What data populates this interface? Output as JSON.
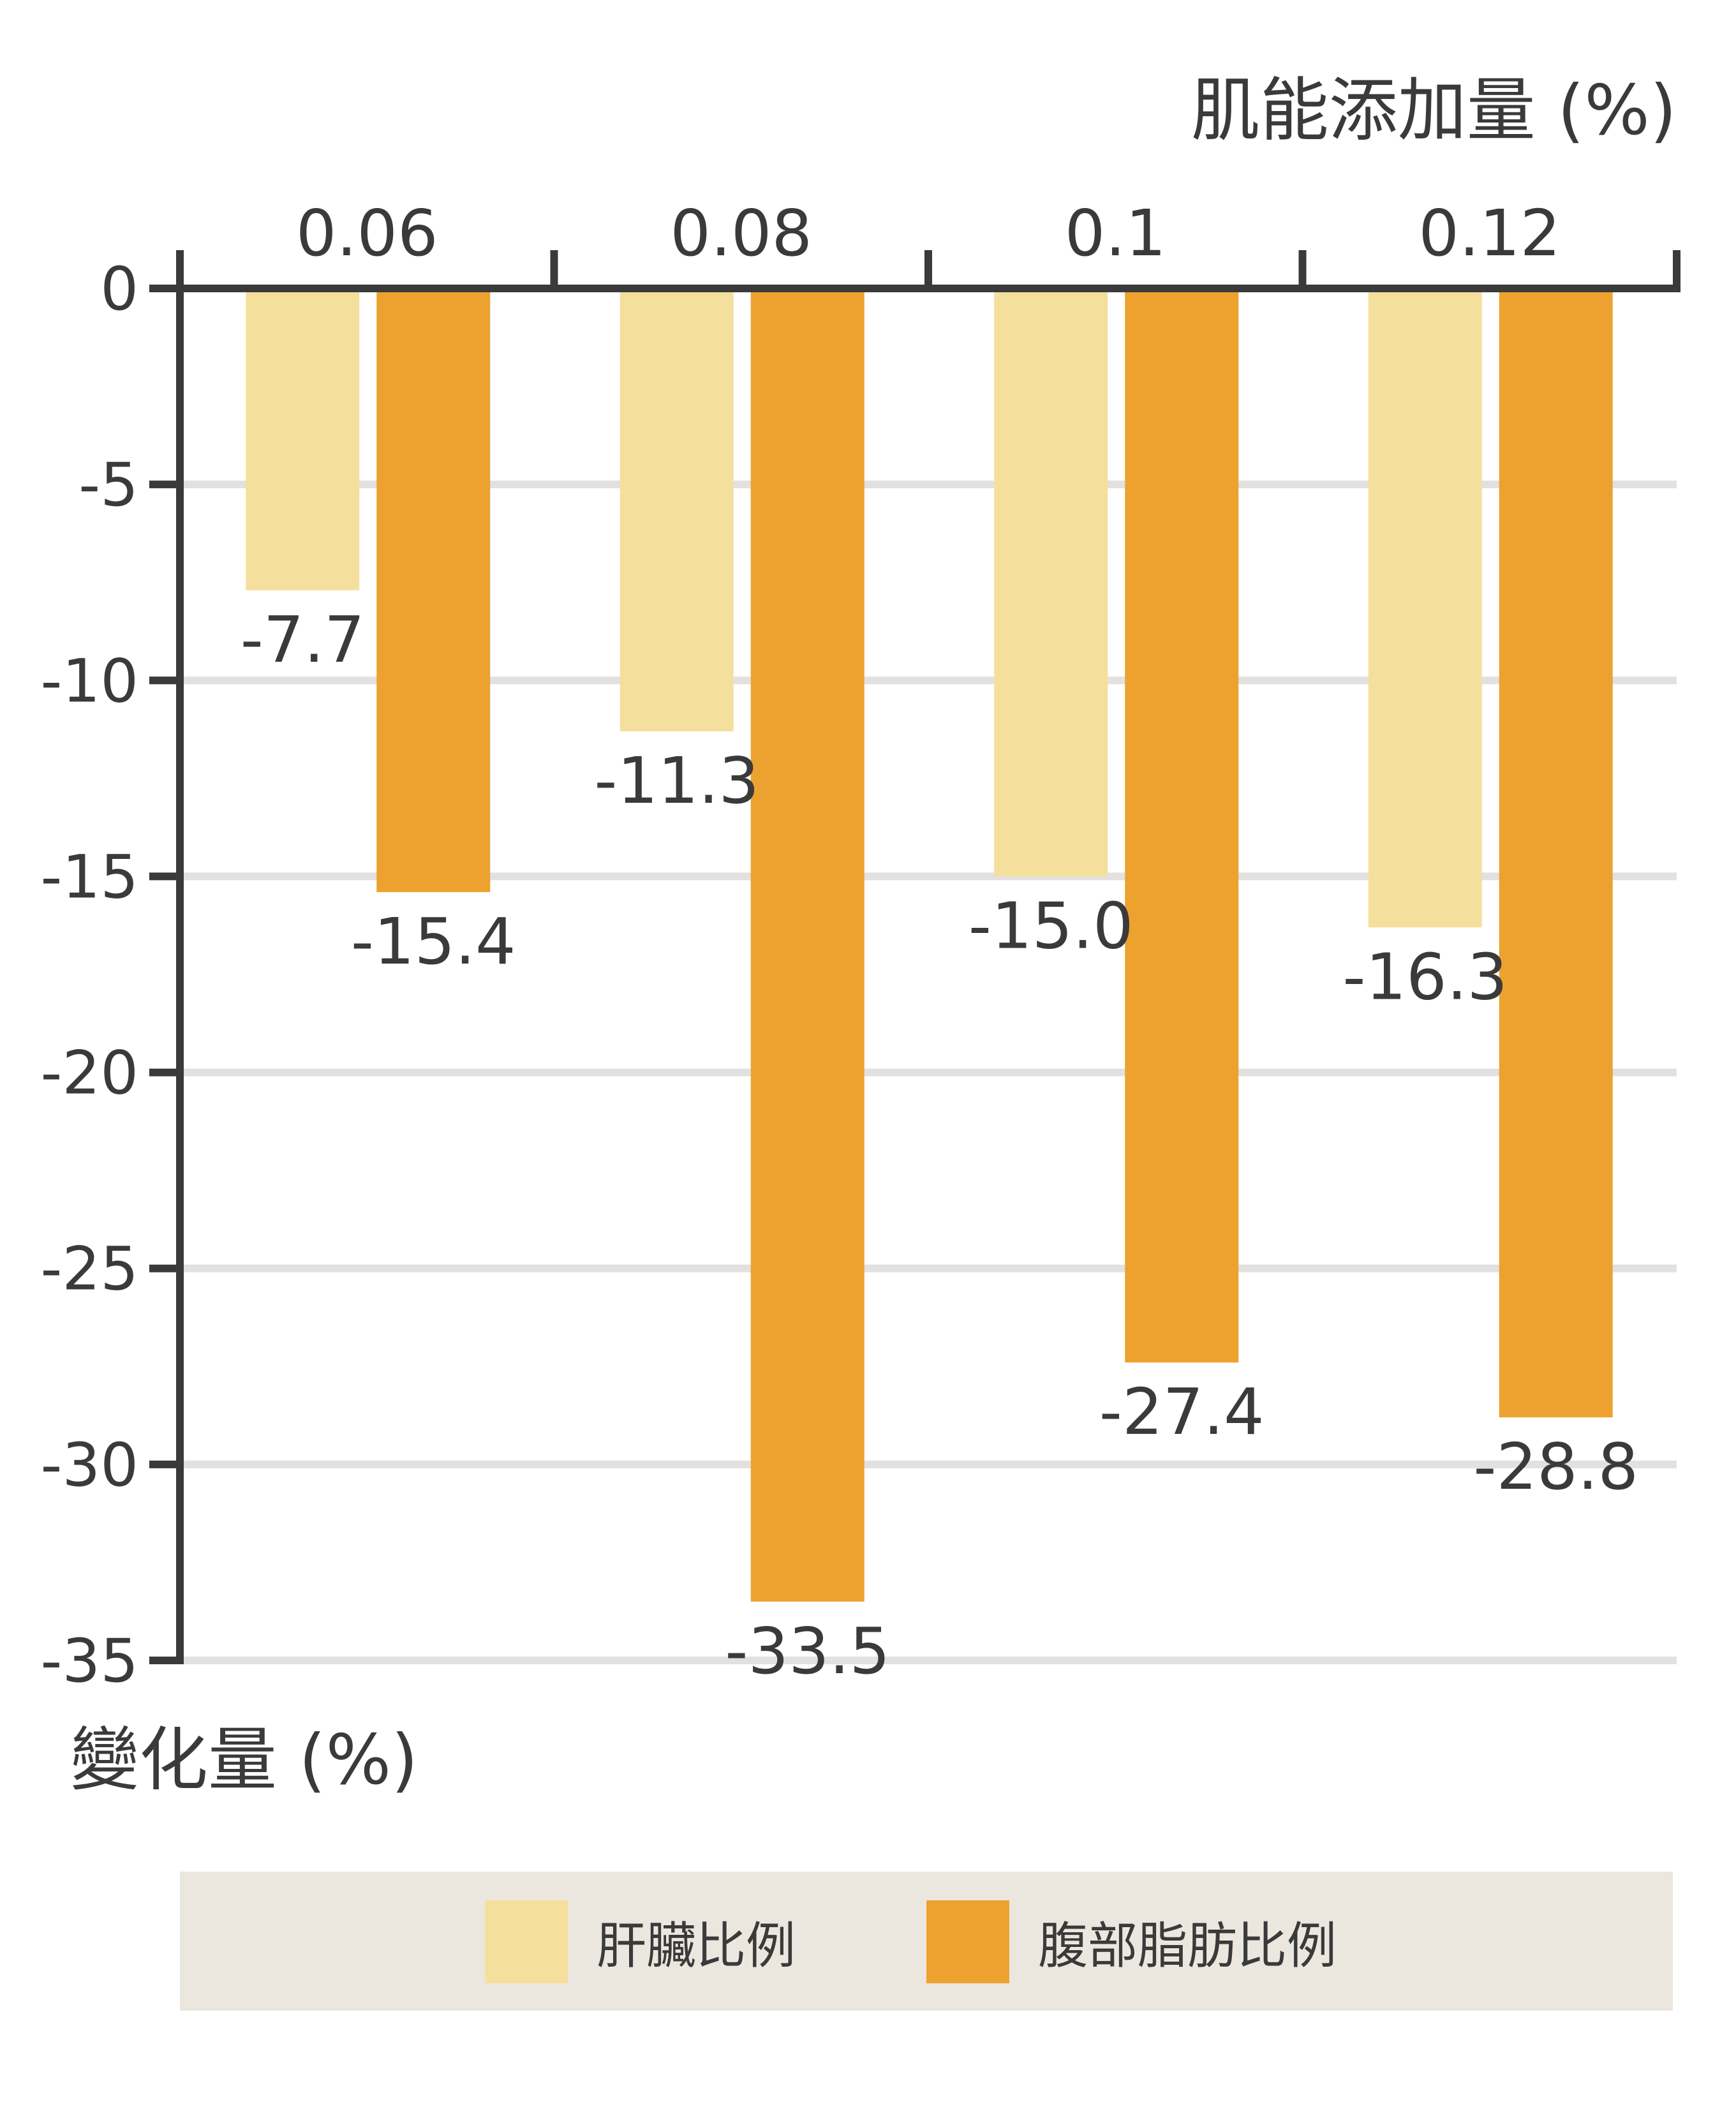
{
  "chart_data": {
    "type": "bar",
    "xlabel": "肌能添加量 (%)",
    "ylabel": "變化量 (%)",
    "categories": [
      "0.06",
      "0.08",
      "0.1",
      "0.12"
    ],
    "series": [
      {
        "name": "肝臟比例",
        "color": "#f5df9d",
        "values": [
          -7.7,
          -11.3,
          -15.0,
          -16.3
        ],
        "labels": [
          "-7.7",
          "-11.3",
          "-15.0",
          "-16.3"
        ]
      },
      {
        "name": "腹部脂肪比例",
        "color": "#eda22f",
        "values": [
          -15.4,
          -33.5,
          -27.4,
          -28.8
        ],
        "labels": [
          "-15.4",
          "-33.5",
          "-27.4",
          "-28.8"
        ]
      }
    ],
    "ylim": [
      -35,
      0
    ],
    "yticks": [
      0,
      -5,
      -10,
      -15,
      -20,
      -25,
      -30,
      -35
    ],
    "ytick_labels": [
      "0",
      "-5",
      "-10",
      "-15",
      "-20",
      "-25",
      "-30",
      "-35"
    ],
    "grid": true,
    "legend_position": "bottom",
    "colors": {
      "axis": "#3a3a3a",
      "grid": "#e3e0e0",
      "legend_bg": "#ebe7df"
    }
  }
}
